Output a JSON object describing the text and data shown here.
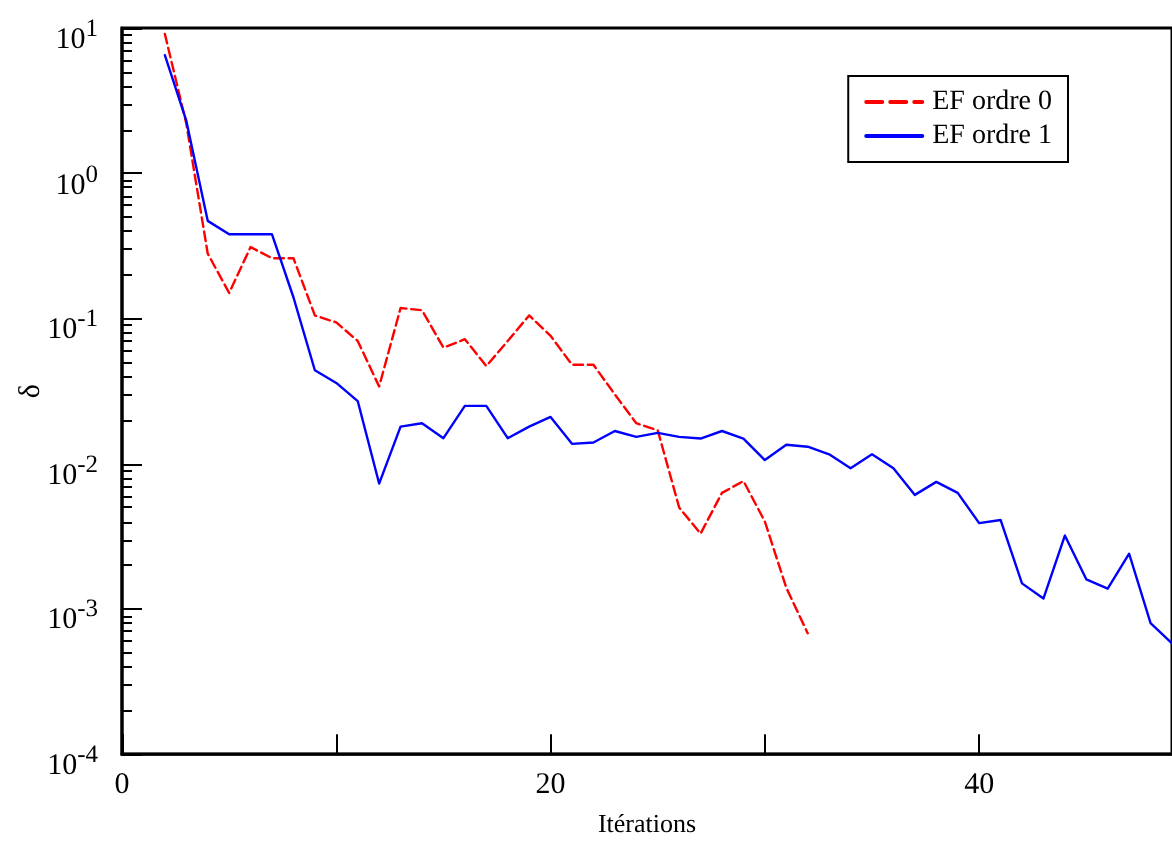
{
  "chart_data": {
    "type": "line",
    "xlabel": "Itérations",
    "ylabel": "δ",
    "log": "y",
    "xlim": [
      0,
      49
    ],
    "xticks": [
      0,
      {
        "value": 10,
        "label": null
      },
      20,
      {
        "value": 30,
        "label": null
      },
      40
    ],
    "ylim": [
      0.0001,
      10
    ],
    "yticks": [
      {
        "value": 10,
        "label": "10$^{1}$"
      },
      {
        "value": 1,
        "label": "10$^{0}$"
      },
      {
        "value": 0.1,
        "label": "10$^{-1}$"
      },
      {
        "value": 0.01,
        "label": "10$^{-2}$"
      },
      {
        "value": 0.001,
        "label": "10$^{-3}$"
      },
      {
        "value": 0.0001,
        "label": "10$^{-4}$"
      }
    ],
    "grid": false,
    "legend": "top right",
    "marker": "none",
    "series": [
      {
        "name": "EF ordre 0",
        "color": "#ff0000",
        "line_style": "dashed",
        "x": [
          2,
          3,
          4,
          5,
          6,
          7,
          8,
          9,
          10,
          11,
          12,
          13,
          14,
          15,
          16,
          17,
          18,
          19,
          20,
          21,
          22,
          23,
          24,
          25,
          26,
          27,
          28,
          29,
          30,
          31,
          32
        ],
        "values": [
          9.1,
          2.2,
          0.28,
          0.15,
          0.31,
          0.26,
          0.26,
          0.105,
          0.094,
          0.07,
          0.034,
          0.118,
          0.114,
          0.063,
          0.072,
          0.047,
          0.07,
          0.105,
          0.076,
          0.048,
          0.048,
          0.03,
          0.019,
          0.017,
          0.005,
          0.0033,
          0.0063,
          0.0076,
          0.004,
          0.0014,
          0.00068
        ]
      },
      {
        "name": "EF ordre 1",
        "color": "#0000ff",
        "line_style": "solid",
        "x": [
          2,
          3,
          4,
          5,
          6,
          7,
          8,
          9,
          10,
          11,
          12,
          13,
          14,
          15,
          16,
          17,
          18,
          19,
          20,
          21,
          22,
          23,
          24,
          25,
          26,
          27,
          28,
          29,
          30,
          31,
          32,
          33,
          34,
          35,
          36,
          37,
          38,
          39,
          40,
          41,
          42,
          43,
          44,
          45,
          46,
          47,
          48,
          49
        ],
        "values": [
          6.5,
          2.3,
          0.47,
          0.38,
          0.38,
          0.38,
          0.14,
          0.044,
          0.036,
          0.027,
          0.0073,
          0.018,
          0.019,
          0.015,
          0.025,
          0.025,
          0.015,
          0.018,
          0.021,
          0.0137,
          0.014,
          0.0168,
          0.0153,
          0.0163,
          0.0153,
          0.0149,
          0.0168,
          0.0149,
          0.0106,
          0.0135,
          0.0131,
          0.0116,
          0.0093,
          0.0116,
          0.0093,
          0.0061,
          0.0075,
          0.0063,
          0.0039,
          0.0041,
          0.0015,
          0.00118,
          0.0032,
          0.0016,
          0.00138,
          0.0024,
          0.0008,
          0.00058
        ]
      }
    ]
  }
}
